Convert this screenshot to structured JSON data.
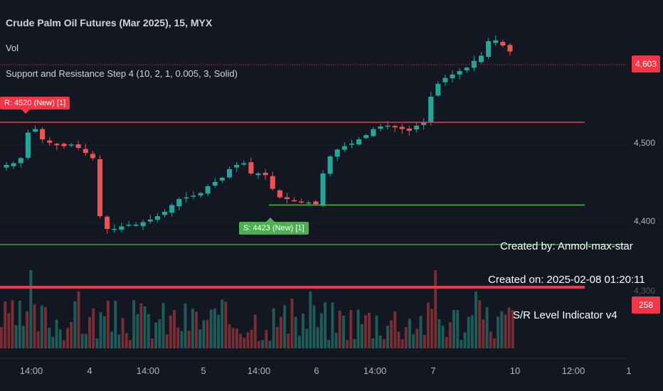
{
  "header": {
    "title": "Crude Palm Oil Futures (Mar 2025), 15, MYX",
    "vol_label": "Vol",
    "indicator_label": "Support and Resistance Step 4 (10, 2, 1, 0.005, 3, Solid)"
  },
  "tags": {
    "resistance": "R: 4520 (New) [1]",
    "support": "S: 4423 (New) [1]"
  },
  "info": {
    "created_by": "Created by: Anmol-max-star",
    "created_on": "Created on: 2025-02-08 01:20:11",
    "indicator": "S/R Level Indicator v4"
  },
  "price_axis": {
    "last_price": "4,603",
    "ticks": [
      "4,500",
      "4,400",
      "4,300"
    ],
    "volume_badge": "258"
  },
  "time_axis": {
    "ticks": [
      "14:00",
      "4",
      "14:00",
      "5",
      "14:00",
      "6",
      "14:00",
      "7",
      "10",
      "12:00",
      "1"
    ]
  },
  "colors": {
    "background": "#131722",
    "up": "#26a69a",
    "down": "#ef5350",
    "resistance": "#f23645",
    "support": "#4caf50",
    "volume_up": "#1e5c58",
    "volume_down": "#7a2e33"
  },
  "chart_data": {
    "type": "candlestick",
    "title": "Crude Palm Oil Futures (Mar 2025), 15, MYX",
    "ylim": [
      4380,
      4630
    ],
    "last_price": 4603,
    "resistance_levels": [
      4520,
      4320
    ],
    "support_levels": [
      4423,
      4367
    ],
    "volume_last": 258,
    "close_series": [
      4470,
      4472,
      4478,
      4508,
      4512,
      4500,
      4496,
      4493,
      4492,
      4494,
      4490,
      4484,
      4478,
      4410,
      4395,
      4395,
      4398,
      4400,
      4400,
      4403,
      4406,
      4410,
      4415,
      4423,
      4430,
      4432,
      4434,
      4437,
      4445,
      4450,
      4455,
      4465,
      4470,
      4472,
      4460,
      4460,
      4458,
      4442,
      4432,
      4430,
      4428,
      4426,
      4426,
      4424,
      4460,
      4480,
      4488,
      4492,
      4495,
      4500,
      4505,
      4512,
      4515,
      4516,
      4514,
      4512,
      4510,
      4516,
      4520,
      4550,
      4565,
      4572,
      4576,
      4580,
      4584,
      4592,
      4598,
      4615,
      4616,
      4610,
      4603
    ]
  }
}
